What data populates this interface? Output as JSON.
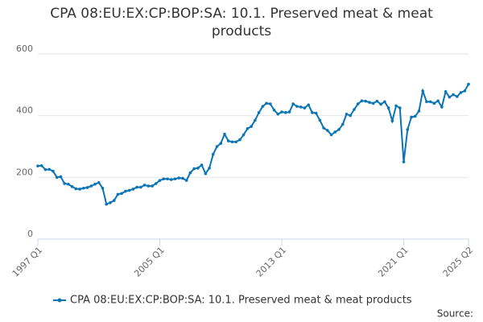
{
  "chart_data": {
    "type": "line",
    "title": "CPA 08:EU:EX:CP:BOP:SA: 10.1. Preserved meat & meat products",
    "source": "Source:",
    "categories": [
      "1997 Q1",
      null,
      null,
      null,
      null,
      null,
      null,
      null,
      null,
      null,
      null,
      null,
      null,
      null,
      null,
      null,
      null,
      null,
      null,
      null,
      null,
      null,
      null,
      null,
      null,
      null,
      null,
      null,
      null,
      null,
      null,
      null,
      "2005 Q1",
      null,
      null,
      null,
      null,
      null,
      null,
      null,
      null,
      null,
      null,
      null,
      null,
      null,
      null,
      null,
      null,
      null,
      null,
      null,
      null,
      null,
      null,
      null,
      null,
      null,
      null,
      null,
      null,
      null,
      null,
      null,
      "2013 Q1",
      null,
      null,
      null,
      null,
      null,
      null,
      null,
      null,
      null,
      null,
      null,
      null,
      null,
      null,
      null,
      null,
      null,
      null,
      null,
      null,
      null,
      null,
      null,
      null,
      null,
      null,
      null,
      null,
      null,
      null,
      null,
      "2021 Q1",
      null,
      null,
      null,
      null,
      null,
      null,
      null,
      null,
      null,
      null,
      null,
      null,
      null,
      null,
      null,
      null,
      "2025 Q2"
    ],
    "series": [
      {
        "name": "CPA 08:EU:EX:CP:BOP:SA: 10.1. Preserved meat & meat products",
        "color": "#0a74b5",
        "values": [
          237,
          238,
          225,
          226,
          220,
          200,
          202,
          180,
          178,
          170,
          163,
          162,
          165,
          167,
          172,
          178,
          183,
          165,
          113,
          118,
          125,
          145,
          148,
          155,
          158,
          162,
          168,
          168,
          175,
          172,
          172,
          180,
          190,
          195,
          195,
          193,
          195,
          198,
          197,
          190,
          215,
          228,
          230,
          240,
          212,
          230,
          275,
          300,
          310,
          340,
          318,
          315,
          315,
          322,
          338,
          358,
          365,
          385,
          410,
          430,
          440,
          438,
          418,
          405,
          412,
          410,
          412,
          438,
          430,
          428,
          425,
          435,
          410,
          408,
          385,
          360,
          352,
          338,
          347,
          355,
          372,
          405,
          400,
          420,
          438,
          448,
          447,
          443,
          440,
          447,
          437,
          445,
          425,
          383,
          432,
          425,
          250,
          355,
          395,
          398,
          415,
          480,
          445,
          445,
          440,
          448,
          428,
          478,
          460,
          468,
          462,
          475,
          480,
          502
        ]
      }
    ],
    "ylim": [
      0,
      600
    ],
    "yticks": [
      0,
      200,
      400,
      600
    ],
    "grid": true
  }
}
